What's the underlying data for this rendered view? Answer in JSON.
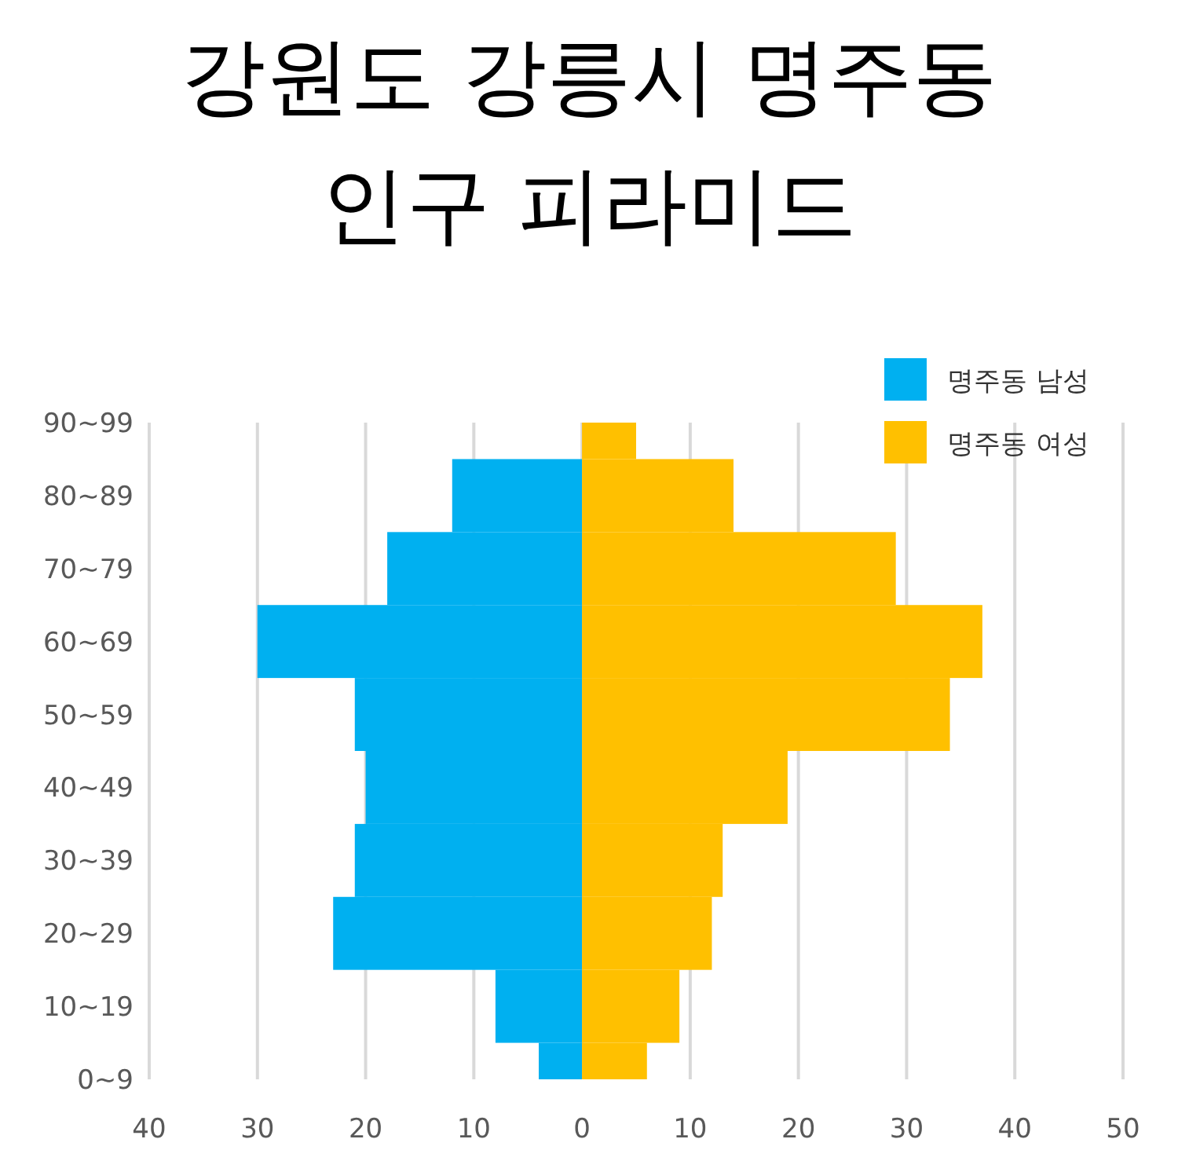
{
  "chart_data": {
    "type": "bar",
    "orientation": "horizontal",
    "title": "강원도 강릉시 명주동 인구 피라미드",
    "categories": [
      "90~99",
      "80~89",
      "70~79",
      "60~69",
      "50~59",
      "40~49",
      "30~39",
      "20~29",
      "10~19",
      "0~9"
    ],
    "series": [
      {
        "name": "명주동 남성",
        "color": "#00b0f0",
        "values": [
          0,
          -12,
          -18,
          -30,
          -21,
          -20,
          -21,
          -23,
          -8,
          -4
        ]
      },
      {
        "name": "명주동 여성",
        "color": "#ffc000",
        "values": [
          5,
          14,
          29,
          37,
          34,
          19,
          13,
          12,
          9,
          6
        ]
      }
    ],
    "xlim": [
      -40,
      50
    ],
    "xticks": [
      {
        "value": -40,
        "label": "40"
      },
      {
        "value": -30,
        "label": "30"
      },
      {
        "value": -20,
        "label": "20"
      },
      {
        "value": -10,
        "label": "10"
      },
      0,
      10,
      20,
      30,
      40,
      50
    ],
    "grid": "x",
    "legend": "top right",
    "stacked": true
  }
}
